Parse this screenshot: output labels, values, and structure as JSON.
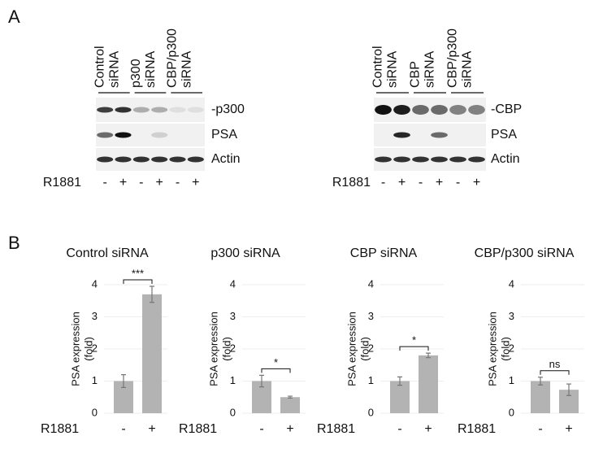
{
  "panel_labels": [
    "A",
    "B"
  ],
  "blots": [
    {
      "groups": [
        [
          "Control",
          "siRNA"
        ],
        [
          "p300",
          "siRNA"
        ],
        [
          "CBP/p300",
          "siRNA"
        ]
      ],
      "rows": [
        "-p300",
        "PSA",
        "Actin"
      ],
      "treatment_label": "R1881",
      "lanes": [
        "-",
        "+",
        "-",
        "+",
        "-",
        "+"
      ]
    },
    {
      "groups": [
        [
          "Control",
          "siRNA"
        ],
        [
          "CBP",
          "siRNA"
        ],
        [
          "CBP/p300",
          "siRNA"
        ]
      ],
      "rows": [
        "-CBP",
        "PSA",
        "Actin"
      ],
      "treatment_label": "R1881",
      "lanes": [
        "-",
        "+",
        "-",
        "+",
        "-",
        "+"
      ]
    }
  ],
  "chart_data": [
    {
      "type": "bar",
      "title": "Control siRNA",
      "ylabel": [
        "PSA expression",
        "(fold)"
      ],
      "xlabel": "R1881",
      "categories": [
        "-",
        "+"
      ],
      "values": [
        1,
        3.7
      ],
      "errors": [
        0.2,
        0.25
      ],
      "significance": "***",
      "color": "#b3b3b3",
      "ylim": [
        0,
        4
      ],
      "yticks": [
        0,
        1,
        2,
        3,
        4
      ],
      "grid": true
    },
    {
      "type": "bar",
      "title": "p300 siRNA",
      "ylabel": [
        "PSA expression",
        "(fold)"
      ],
      "xlabel": "R1881",
      "categories": [
        "-",
        "+"
      ],
      "values": [
        1,
        0.5
      ],
      "errors": [
        0.18,
        0.03
      ],
      "significance": "*",
      "color": "#b3b3b3",
      "ylim": [
        0,
        4
      ],
      "yticks": [
        0,
        1,
        2,
        3,
        4
      ],
      "grid": true
    },
    {
      "type": "bar",
      "title": "CBP siRNA",
      "ylabel": [
        "PSA expression",
        "(fold)"
      ],
      "xlabel": "R1881",
      "categories": [
        "-",
        "+"
      ],
      "values": [
        1,
        1.8
      ],
      "errors": [
        0.13,
        0.07
      ],
      "significance": "*",
      "color": "#b3b3b3",
      "ylim": [
        0,
        4
      ],
      "yticks": [
        0,
        1,
        2,
        3,
        4
      ],
      "grid": true
    },
    {
      "type": "bar",
      "title": "CBP/p300 siRNA",
      "ylabel": [
        "PSA expression",
        "(fold)"
      ],
      "xlabel": "R1881",
      "categories": [
        "-",
        "+"
      ],
      "values": [
        1,
        0.73
      ],
      "errors": [
        0.12,
        0.18
      ],
      "significance": "ns",
      "color": "#b3b3b3",
      "ylim": [
        0,
        4
      ],
      "yticks": [
        0,
        1,
        2,
        3,
        4
      ],
      "grid": true
    }
  ]
}
